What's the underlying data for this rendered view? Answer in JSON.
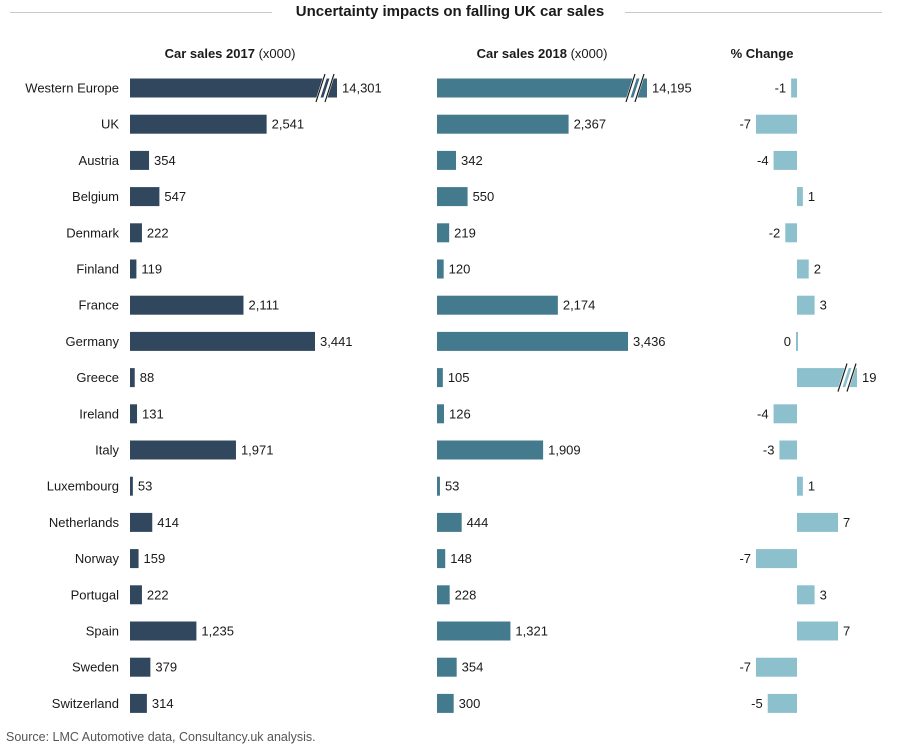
{
  "title": "Uncertainty impacts on falling UK car sales",
  "source": "Source: LMC Automotive data, Consultancy.uk analysis.",
  "colors": {
    "sales_2017": "#30475e",
    "sales_2018": "#437a8e",
    "change": "#8cc0cd",
    "break_mark": "#ffffff"
  },
  "chart_data": {
    "type": "bar",
    "orientation": "horizontal",
    "title": "Uncertainty impacts on falling UK car sales",
    "categories": [
      "Western Europe",
      "UK",
      "Austria",
      "Belgium",
      "Denmark",
      "Finland",
      "France",
      "Germany",
      "Greece",
      "Ireland",
      "Italy",
      "Luxembourg",
      "Netherlands",
      "Norway",
      "Portugal",
      "Spain",
      "Sweden",
      "Switzerland"
    ],
    "panels": [
      {
        "id": "sales_2017",
        "heading": "Car sales 2017",
        "heading_unit": "(x000)",
        "values": [
          14301,
          2541,
          354,
          547,
          222,
          119,
          2111,
          3441,
          88,
          131,
          1971,
          53,
          414,
          159,
          222,
          1235,
          379,
          314
        ],
        "labels": [
          "14,301",
          "2,541",
          "354",
          "547",
          "222",
          "119",
          "2,111",
          "3,441",
          "88",
          "131",
          "1,971",
          "53",
          "414",
          "159",
          "222",
          "1,235",
          "379",
          "314"
        ],
        "axis_break_at": 0
      },
      {
        "id": "sales_2018",
        "heading": "Car sales 2018",
        "heading_unit": "(x000)",
        "values": [
          14195,
          2367,
          342,
          550,
          219,
          120,
          2174,
          3436,
          105,
          126,
          1909,
          53,
          444,
          148,
          228,
          1321,
          354,
          300
        ],
        "labels": [
          "14,195",
          "2,367",
          "342",
          "550",
          "219",
          "120",
          "2,174",
          "3,436",
          "105",
          "126",
          "1,909",
          "53",
          "444",
          "148",
          "228",
          "1,321",
          "354",
          "300"
        ],
        "axis_break_at": 0
      },
      {
        "id": "change",
        "heading": "% Change",
        "heading_unit": "",
        "values": [
          -1,
          -7,
          -4,
          1,
          -2,
          2,
          3,
          0,
          19,
          -4,
          -3,
          1,
          7,
          -7,
          3,
          7,
          -7,
          -5
        ],
        "labels": [
          "-1",
          "-7",
          "-4",
          "1",
          "-2",
          "2",
          "3",
          "0",
          "19",
          "-4",
          "-3",
          "1",
          "7",
          "-7",
          "3",
          "7",
          "-7",
          "-5"
        ],
        "axis_break_at": 8
      }
    ]
  }
}
